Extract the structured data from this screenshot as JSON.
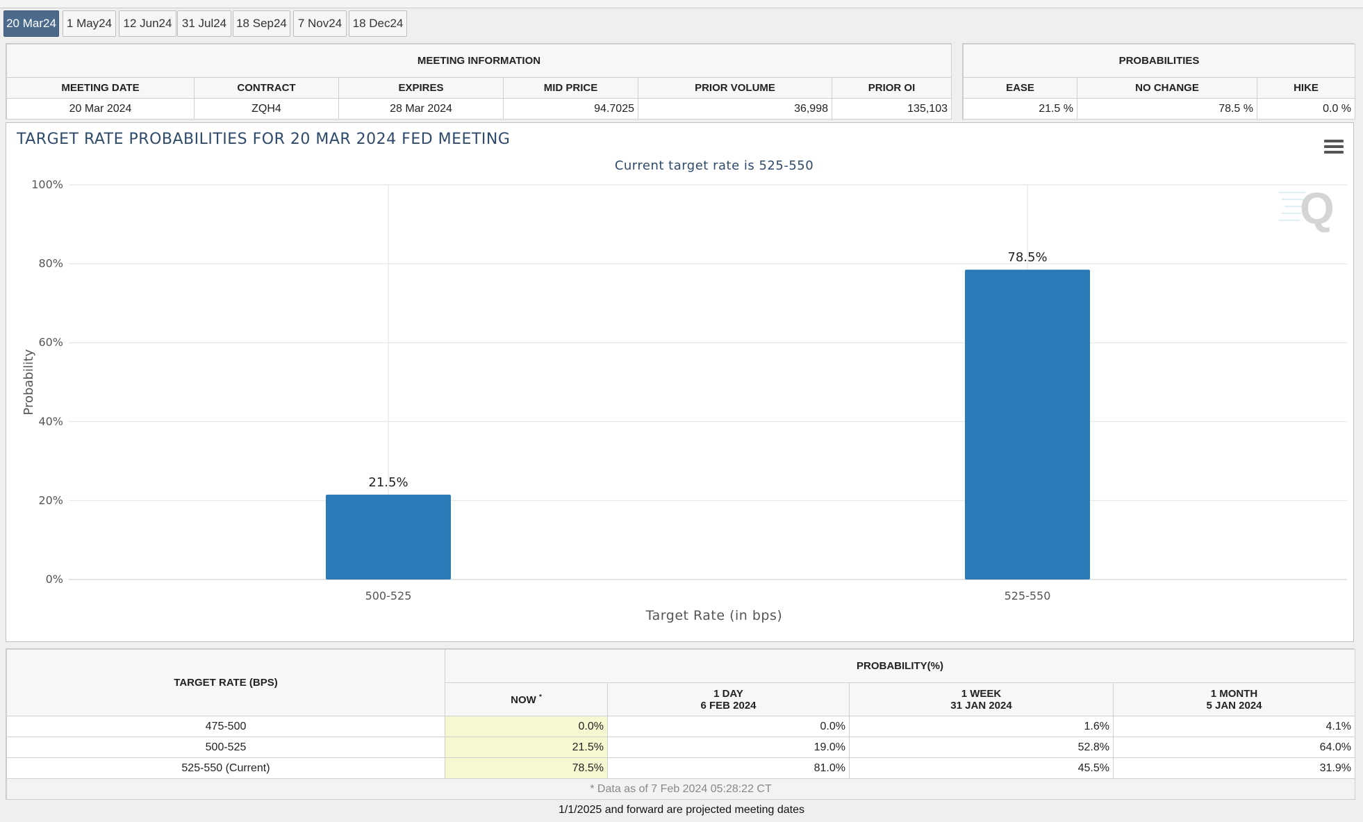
{
  "tabs": [
    "20 Mar24",
    "1 May24",
    "12 Jun24",
    "31 Jul24",
    "18 Sep24",
    "7 Nov24",
    "18 Dec24"
  ],
  "meeting_info": {
    "title": "MEETING INFORMATION",
    "headers": [
      "MEETING DATE",
      "CONTRACT",
      "EXPIRES",
      "MID PRICE",
      "PRIOR VOLUME",
      "PRIOR OI"
    ],
    "values": [
      "20 Mar 2024",
      "ZQH4",
      "28 Mar 2024",
      "94.7025",
      "36,998",
      "135,103"
    ]
  },
  "probabilities": {
    "title": "PROBABILITIES",
    "headers": [
      "EASE",
      "NO CHANGE",
      "HIKE"
    ],
    "values": [
      "21.5 %",
      "78.5 %",
      "0.0 %"
    ]
  },
  "chart_data": {
    "type": "bar",
    "title": "TARGET RATE PROBABILITIES FOR 20 MAR 2024 FED MEETING",
    "subtitle": "Current target rate is 525-550",
    "xlabel": "Target Rate (in bps)",
    "ylabel": "Probability",
    "categories": [
      "500-525",
      "525-550"
    ],
    "values": [
      21.5,
      78.5
    ],
    "data_labels": [
      "21.5%",
      "78.5%"
    ],
    "y_ticks": [
      "0%",
      "20%",
      "40%",
      "60%",
      "80%",
      "100%"
    ],
    "ylim": [
      0,
      100
    ],
    "bar_color": "#2b7bb9",
    "grid": true
  },
  "bottom_table": {
    "col_target": "TARGET RATE (BPS)",
    "col_prob": "PROBABILITY(%)",
    "now_label": "NOW",
    "now_marker": "*",
    "col_1day": [
      "1 DAY",
      "6 FEB 2024"
    ],
    "col_1week": [
      "1 WEEK",
      "31 JAN 2024"
    ],
    "col_1month": [
      "1 MONTH",
      "5 JAN 2024"
    ],
    "rows": [
      {
        "rate": "475-500",
        "now": "0.0%",
        "day": "0.0%",
        "week": "1.6%",
        "month": "4.1%"
      },
      {
        "rate": "500-525",
        "now": "21.5%",
        "day": "19.0%",
        "week": "52.8%",
        "month": "64.0%"
      },
      {
        "rate": "525-550 (Current)",
        "now": "78.5%",
        "day": "81.0%",
        "week": "45.5%",
        "month": "31.9%"
      }
    ],
    "footnote": "* Data as of 7 Feb 2024 05:28:22 CT"
  },
  "projected_note": "1/1/2025 and forward are projected meeting dates"
}
